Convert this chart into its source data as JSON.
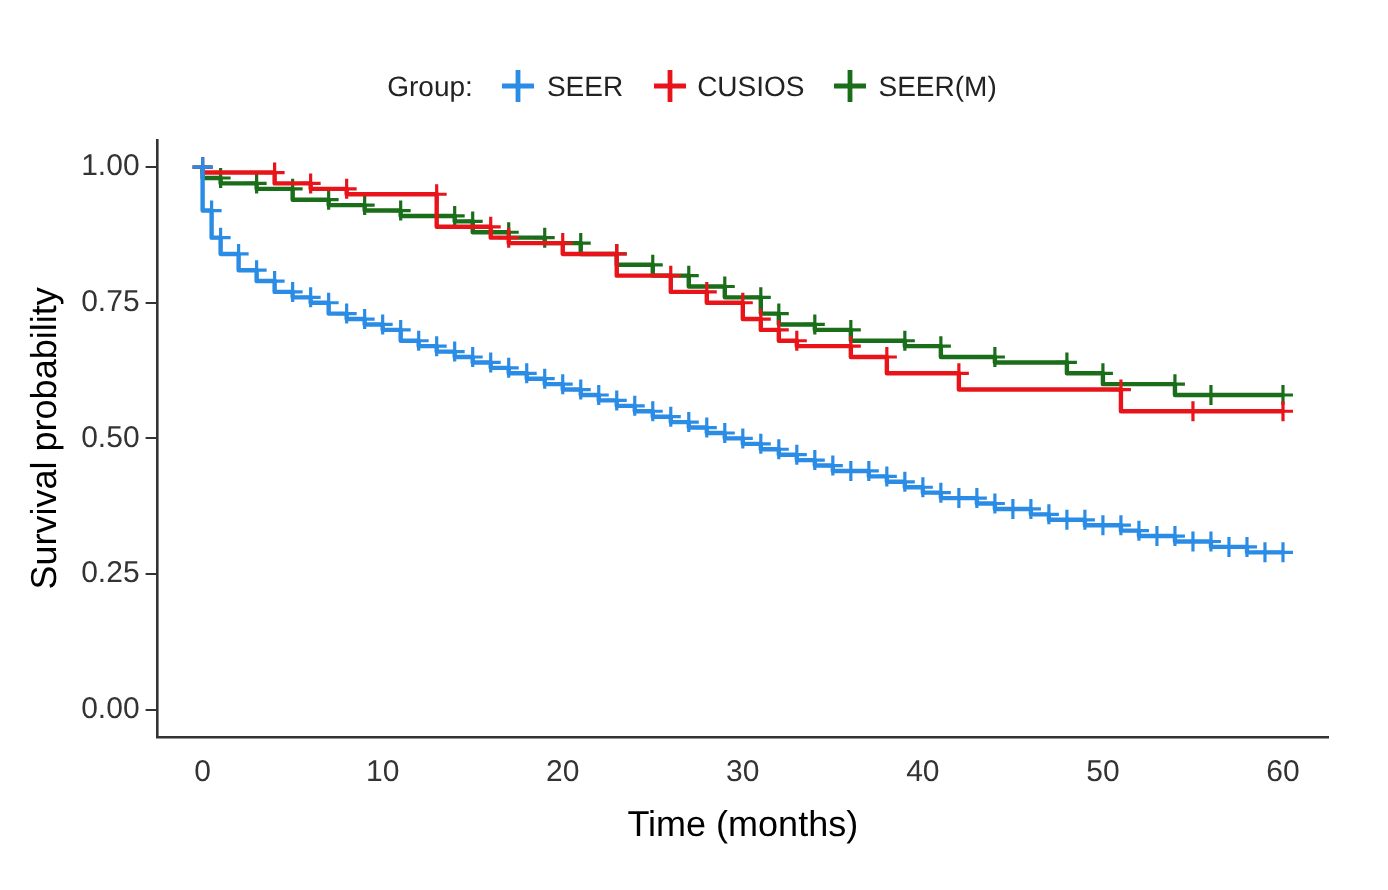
{
  "chart_data": {
    "type": "step",
    "xlabel": "Time (months)",
    "ylabel": "Survival probability",
    "legend_title": "Group:",
    "legend": "top",
    "marker": "cross",
    "grid": false,
    "xlim": [
      -2.5,
      62.5
    ],
    "xticks": [
      0,
      10,
      20,
      30,
      40,
      50,
      60
    ],
    "ylim": [
      -0.05,
      1.05
    ],
    "yticks": [
      {
        "value": 0,
        "label": "0.00"
      },
      0.25,
      {
        "value": 0.5,
        "label": "0.50"
      },
      0.75,
      {
        "value": 1,
        "label": "1.00"
      }
    ],
    "series": [
      {
        "name": "SEER",
        "color": "#2b8ce6",
        "x": [
          0,
          0.5,
          1,
          2,
          3,
          4,
          5,
          6,
          7,
          8,
          9,
          10,
          11,
          12,
          13,
          14,
          15,
          16,
          17,
          18,
          19,
          20,
          21,
          22,
          23,
          24,
          25,
          26,
          27,
          28,
          29,
          30,
          31,
          32,
          33,
          34,
          35,
          36,
          37,
          38,
          39,
          40,
          41,
          42,
          43,
          44,
          45,
          46,
          47,
          48,
          49,
          50,
          51,
          52,
          53,
          54,
          55,
          56,
          57,
          58,
          59,
          60
        ],
        "values": [
          1.0,
          0.92,
          0.87,
          0.84,
          0.81,
          0.79,
          0.77,
          0.76,
          0.75,
          0.73,
          0.72,
          0.71,
          0.7,
          0.68,
          0.67,
          0.66,
          0.65,
          0.64,
          0.63,
          0.62,
          0.61,
          0.6,
          0.59,
          0.58,
          0.57,
          0.56,
          0.55,
          0.54,
          0.53,
          0.52,
          0.51,
          0.5,
          0.49,
          0.48,
          0.47,
          0.46,
          0.45,
          0.44,
          0.44,
          0.43,
          0.42,
          0.41,
          0.4,
          0.39,
          0.39,
          0.38,
          0.37,
          0.37,
          0.36,
          0.35,
          0.35,
          0.34,
          0.34,
          0.33,
          0.32,
          0.32,
          0.31,
          0.31,
          0.3,
          0.3,
          0.29,
          0.29
        ]
      },
      {
        "name": "CUSIOS",
        "color": "#e8141a",
        "x": [
          0,
          4,
          6,
          8,
          13,
          16,
          17,
          20,
          23,
          26,
          28,
          30,
          31,
          32,
          33,
          36,
          38,
          42,
          51,
          55,
          60
        ],
        "values": [
          1.0,
          0.99,
          0.97,
          0.96,
          0.95,
          0.89,
          0.87,
          0.86,
          0.84,
          0.8,
          0.77,
          0.75,
          0.72,
          0.7,
          0.68,
          0.67,
          0.65,
          0.62,
          0.59,
          0.55,
          0.55
        ]
      },
      {
        "name": "SEER(M)",
        "color": "#1a6e1a",
        "x": [
          0,
          1,
          3,
          5,
          7,
          9,
          11,
          14,
          15,
          17,
          19,
          21,
          23,
          25,
          27,
          29,
          31,
          32,
          34,
          36,
          39,
          41,
          44,
          48,
          50,
          54,
          56,
          60
        ],
        "values": [
          1.0,
          0.98,
          0.97,
          0.96,
          0.94,
          0.93,
          0.92,
          0.91,
          0.9,
          0.88,
          0.87,
          0.86,
          0.84,
          0.82,
          0.8,
          0.78,
          0.76,
          0.73,
          0.71,
          0.7,
          0.68,
          0.67,
          0.65,
          0.64,
          0.62,
          0.6,
          0.58,
          0.58
        ]
      }
    ]
  }
}
